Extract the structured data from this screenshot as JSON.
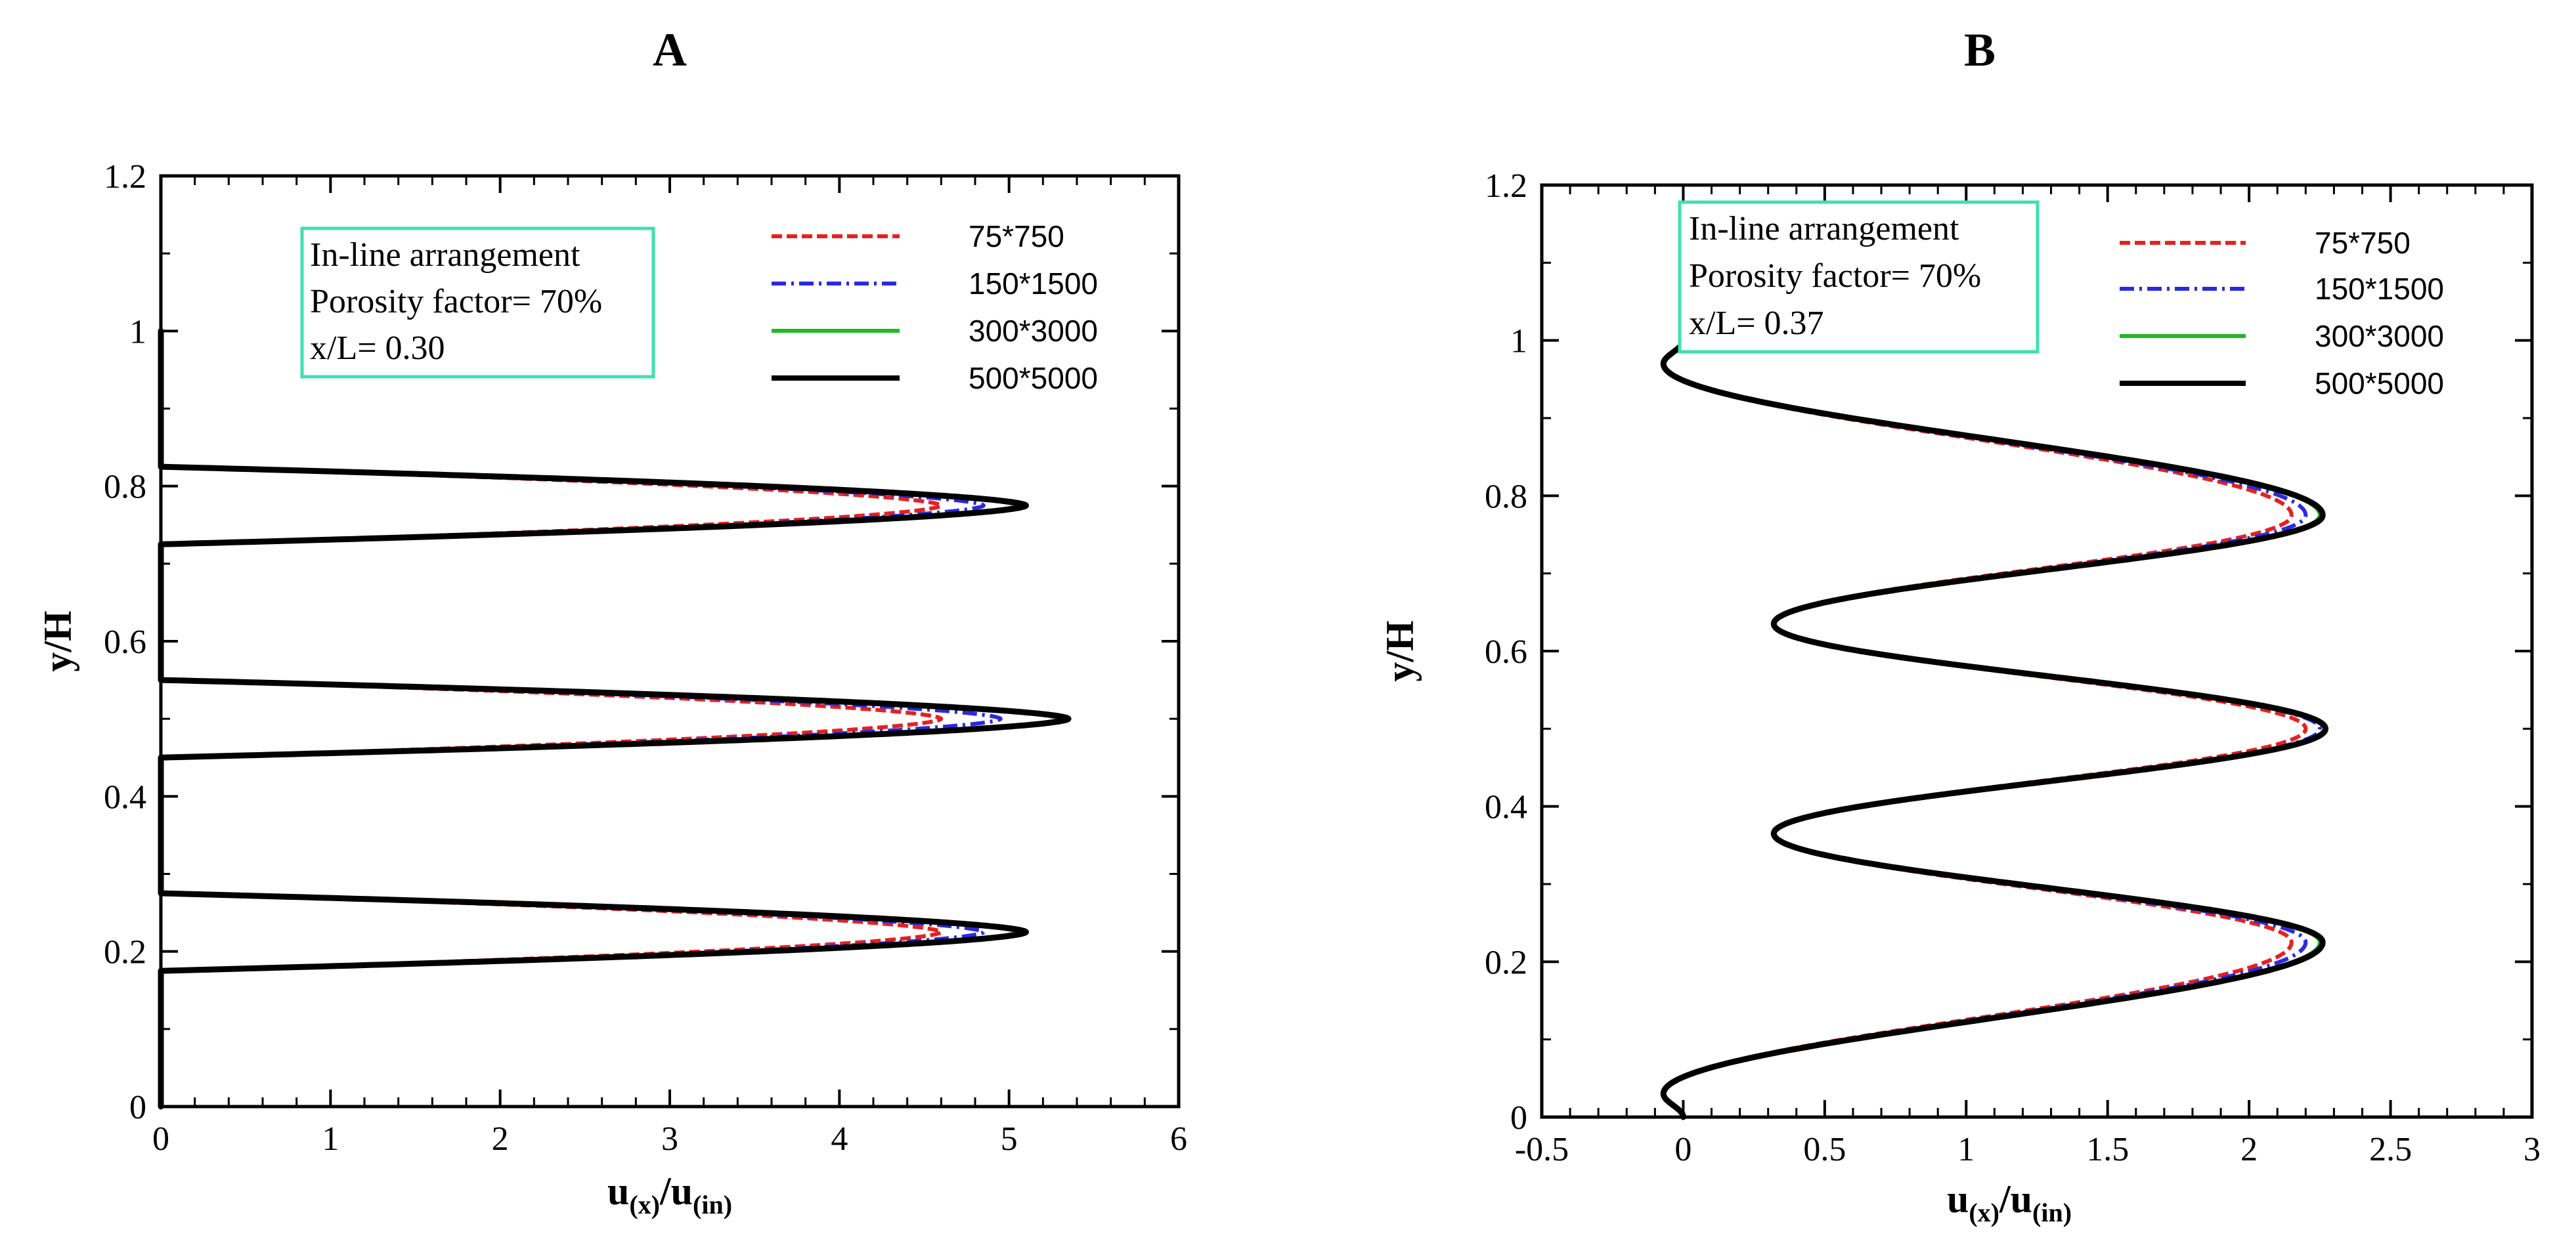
{
  "chart_data": [
    {
      "type": "line",
      "panel": "A",
      "title": "A",
      "xlabel_main": "u",
      "xlabel_sub1": "(x)",
      "xlabel_sep": "/u",
      "xlabel_sub2": "(in)",
      "ylabel": "y/H",
      "xlim": [
        0,
        6
      ],
      "ylim": [
        0,
        1.2
      ],
      "xticks": [
        0,
        1,
        2,
        3,
        4,
        5,
        6
      ],
      "xtick_labels": [
        "0",
        "1",
        "2",
        "3",
        "4",
        "5",
        "6"
      ],
      "yticks": [
        0,
        0.2,
        0.4,
        0.6,
        0.8,
        1,
        1.2
      ],
      "ytick_labels": [
        "0",
        "0.2",
        "0.4",
        "0.6",
        "0.8",
        "1",
        "1.2"
      ],
      "annotation": [
        "In-line arrangement",
        "Porosity factor= 70%",
        "x/L= 0.30"
      ],
      "annotation_border_color": "#3fe0b0",
      "series": [
        {
          "name": "75*750",
          "color": "#e8201e",
          "dash": "dashed",
          "peaks": [
            4.6,
            4.6,
            4.6
          ]
        },
        {
          "name": "150*1500",
          "color": "#2a2ae0",
          "dash": "dashdot",
          "peaks": [
            4.85,
            4.95,
            4.85
          ]
        },
        {
          "name": "300*3000",
          "color": "#22b822",
          "dash": "solid",
          "peaks": [
            5.05,
            5.3,
            5.05
          ]
        },
        {
          "name": "500*5000",
          "color": "#000000",
          "dash": "solid",
          "peaks": [
            5.1,
            5.35,
            5.1
          ]
        }
      ],
      "profile": {
        "jets": [
          {
            "center": 0.775,
            "half_width": 0.05
          },
          {
            "center": 0.5,
            "half_width": 0.05
          },
          {
            "center": 0.225,
            "half_width": 0.05
          }
        ],
        "wall_x": 0.0,
        "y_range": [
          0,
          1
        ]
      }
    },
    {
      "type": "line",
      "panel": "B",
      "title": "B",
      "xlabel_main": "u",
      "xlabel_sub1": "(x)",
      "xlabel_sep": "/u",
      "xlabel_sub2": "(in)",
      "ylabel": "y/H",
      "xlim": [
        -0.5,
        3
      ],
      "ylim": [
        0,
        1.2
      ],
      "xticks": [
        -0.5,
        0,
        0.5,
        1,
        1.5,
        2,
        2.5,
        3
      ],
      "xtick_labels": [
        "-0.5",
        "0",
        "0.5",
        "1",
        "1.5",
        "2",
        "2.5",
        "3"
      ],
      "yticks": [
        0,
        0.2,
        0.4,
        0.6,
        0.8,
        1,
        1.2
      ],
      "ytick_labels": [
        "0",
        "0.2",
        "0.4",
        "0.6",
        "0.8",
        "1",
        "1.2"
      ],
      "annotation": [
        "In-line arrangement",
        "Porosity factor= 70%",
        "x/L= 0.37"
      ],
      "annotation_border_color": "#3fe0b0",
      "series": [
        {
          "name": "75*750",
          "color": "#e8201e",
          "dash": "dashed",
          "peaks": [
            2.15,
            2.2,
            2.15
          ]
        },
        {
          "name": "150*1500",
          "color": "#2a2ae0",
          "dash": "dashdot",
          "peaks": [
            2.2,
            2.25,
            2.2
          ]
        },
        {
          "name": "300*3000",
          "color": "#22b822",
          "dash": "solid",
          "peaks": [
            2.25,
            2.27,
            2.25
          ]
        },
        {
          "name": "500*5000",
          "color": "#000000",
          "dash": "solid",
          "peaks": [
            2.26,
            2.27,
            2.26
          ]
        }
      ],
      "profile": {
        "peak_ys": [
          0.775,
          0.5,
          0.225
        ],
        "valley_ys": [
          0.635,
          0.365
        ],
        "valley_x": 0.32,
        "edge_x_min": -0.07,
        "y_range": [
          0,
          1
        ]
      }
    }
  ]
}
